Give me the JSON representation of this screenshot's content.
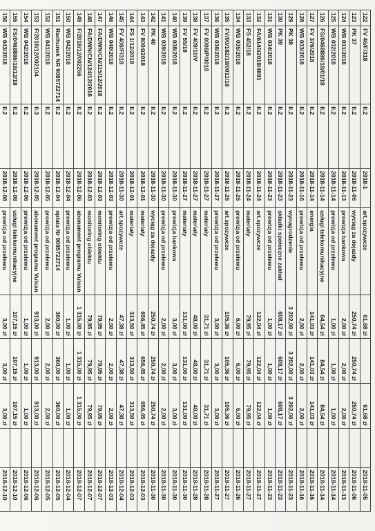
{
  "rows": [
    {
      "no": "122",
      "doc": "FV 46/F/318",
      "code": "II.2",
      "date": "2018-1",
      "desc": "art.spozywcze",
      "amount": "61,68 zł",
      "paid": "",
      "balance": "61,68 zł",
      "date2": "",
      "date3": "2018-11-05"
    },
    {
      "no": "123",
      "doc": "PK 37",
      "code": "II.2",
      "date": "2018-11-06",
      "desc": "wyciąg za dojazdy",
      "amount": "250,74 zł",
      "paid": "250,74 zł",
      "balance": "250,74 zł",
      "date2": "",
      "date3": "2018-11-06"
    },
    {
      "no": "124",
      "doc": "WB 031/2018",
      "code": "II.2",
      "date": "2018-11-13",
      "desc": "prowizja bankowa",
      "amount": "2,00 zł",
      "paid": "2,00 zł",
      "balance": "2,00 zł",
      "date2": "",
      "date3": "2018-11-13"
    },
    {
      "no": "125",
      "doc": "WB 032/2018",
      "code": "II.2",
      "date": "2018-11-14",
      "desc": "prowizja od przelewu",
      "amount": "1,00 zł",
      "paid": "1,00 zł",
      "balance": "1,00 zł",
      "date2": "",
      "date3": "2018-11-14"
    },
    {
      "no": "126",
      "doc": "FS/0468886/18/01/18",
      "code": "II.2",
      "date": "2018-11-14",
      "desc": "usługi telekomunikacyjne",
      "amount": "84,54 zł",
      "paid": "84,54 zł",
      "balance": "84,54 zł",
      "date2": "",
      "date3": "2018-11-14"
    },
    {
      "no": "127",
      "doc": "FV 376/2018",
      "code": "II.2",
      "date": "2018-11-14",
      "desc": "energia",
      "amount": "141,03 zł",
      "paid": "141,03 zł",
      "balance": "141,03 zł",
      "date2": "",
      "date3": "2018-11-16"
    },
    {
      "no": "128",
      "doc": "WB 033/2018",
      "code": "II.2",
      "date": "2018-11-16",
      "desc": "prowizja od przelewu",
      "amount": "2,00 zł",
      "paid": "2,00 zł",
      "balance": "2,00 zł",
      "date2": "",
      "date3": "2018-11-16"
    },
    {
      "no": "129",
      "doc": "PK 38",
      "code": "II.2",
      "date": "2018-11-23",
      "desc": "wynagrodzenie",
      "amount": "3 202,00 zł",
      "paid": "3 202,00 zł",
      "balance": "3 202,00 zł",
      "date2": "",
      "date3": "2018-11-23"
    },
    {
      "no": "130",
      "doc": "PK 39",
      "code": "II.2",
      "date": "2018-11-23",
      "desc": "składki społeczne zakład",
      "amount": "608,17 zł",
      "paid": "608,17 zł",
      "balance": "608,17 zł",
      "date2": "",
      "date3": "2018-11-23"
    },
    {
      "no": "131",
      "doc": "WB 034/2018",
      "code": "II.2",
      "date": "2018-11-23",
      "desc": "prowizja od przelewu",
      "amount": "1,00 zł",
      "paid": "1,00 zł",
      "balance": "1,00 zł",
      "date2": "",
      "date3": "2018-11-23"
    },
    {
      "no": "132",
      "doc": "FA/6140/2018/4891",
      "code": "II.2",
      "date": "2018-11-24",
      "desc": "art.spozywcze",
      "amount": "122,04 zł",
      "paid": "122,04 zł",
      "balance": "122,04 zł",
      "date2": "",
      "date3": "2018-11-27"
    },
    {
      "no": "133",
      "doc": "FS 452/18",
      "code": "II.2",
      "date": "2018-11-24",
      "desc": "materiały",
      "amount": "79,95 zł",
      "paid": "79,95 zł",
      "balance": "79,95 zł",
      "date2": "",
      "date3": "2018-11-27"
    },
    {
      "no": "134",
      "doc": "WB 035/2018",
      "code": "II.2",
      "date": "2018-11-26",
      "desc": "prowizja od przelewu",
      "amount": "6,00 zł",
      "paid": "6,00 zł",
      "balance": "6,00 zł",
      "date2": "",
      "date3": "2018-11-26"
    },
    {
      "no": "135",
      "doc": "FV/00/182/18/0011/18",
      "code": "II.2",
      "date": "2018-11-26",
      "desc": "art.spozywcze",
      "amount": "105,36 zł",
      "paid": "105,36 zł",
      "balance": "105,36 zł",
      "date2": "",
      "date3": "2018-11-27"
    },
    {
      "no": "136",
      "doc": "WB 036/2018",
      "code": "II.2",
      "date": "2018-11-27",
      "desc": "prowizja od przelewu",
      "amount": "3,00 zł",
      "paid": "3,00 zł",
      "balance": "3,00 zł",
      "date2": "",
      "date3": "2018-11-27"
    },
    {
      "no": "137",
      "doc": "FV 0008/P/0018",
      "code": "II.2",
      "date": "2018-11-27",
      "desc": "materiały",
      "amount": "31,71 zł",
      "paid": "31,71 zł",
      "balance": "31,71 zł",
      "date2": "",
      "date3": "2018-11-28"
    },
    {
      "no": "138",
      "doc": "FV 409/10/V",
      "code": "II.2",
      "date": "2018-11-27",
      "desc": "materiały",
      "amount": "48,00 zł",
      "paid": "48,00 zł",
      "balance": "48,00 zł",
      "date2": "",
      "date3": "2018-11-28"
    },
    {
      "no": "139",
      "doc": "FV 55/18",
      "code": "II.2",
      "date": "2018-11-27",
      "desc": "materiały",
      "amount": "131,00 zł",
      "paid": "131,00 zł",
      "balance": "131,00 zł",
      "date2": "",
      "date3": "2018-11-30"
    },
    {
      "no": "140",
      "doc": "WB 038/2018",
      "code": "II.2",
      "date": "2018-11-30",
      "desc": "prowizja bankowa",
      "amount": "3,00 zł",
      "paid": "3,00 zł",
      "balance": "3,00 zł",
      "date2": "",
      "date3": "2018-11-30"
    },
    {
      "no": "141",
      "doc": "WB 039/2018",
      "code": "II.2",
      "date": "2018-11-30",
      "desc": "prowizja od przelewu",
      "amount": "2,00 zł",
      "paid": "2,00 zł",
      "balance": "2,00 zł",
      "date2": "",
      "date3": "2018-11-30"
    },
    {
      "no": "142",
      "doc": "PK 40",
      "code": "II.2",
      "date": "2018-11-30",
      "desc": "wyciąg za dojazdy",
      "amount": "250,74 zł",
      "paid": "250,74 zł",
      "balance": "250,74 zł",
      "date2": "",
      "date3": "2018-11-30"
    },
    {
      "no": "143",
      "doc": "FV 8004/2018",
      "code": "II.2",
      "date": "2018-12-01",
      "desc": "materiały",
      "amount": "656,45 zł",
      "paid": "656,45 zł",
      "balance": "656,45 zł",
      "date2": "",
      "date3": "2018-12-03"
    },
    {
      "no": "144",
      "doc": "FS 1/12/2018",
      "code": "II.2",
      "date": "2018-12-01",
      "desc": "materiały",
      "amount": "313,50 zł",
      "paid": "313,50 zł",
      "balance": "313,50 zł",
      "date2": "",
      "date3": "2018-12-03"
    },
    {
      "no": "145",
      "doc": "FV 406/F/318",
      "code": "II.2",
      "date": "2018-11-30",
      "desc": "art.spozywcze",
      "amount": "47,38 zł",
      "paid": "47,38 zł",
      "balance": "47,38 zł",
      "date2": "",
      "date3": "2018-12-04"
    },
    {
      "no": "146",
      "doc": "WB 040/2018",
      "code": "II.2",
      "date": "2018-12-03",
      "desc": "prowizja od przelewu",
      "amount": "2,00 zł",
      "paid": "2,00 zł",
      "balance": "2,00 zł",
      "date2": "",
      "date3": "2018-12-03"
    },
    {
      "no": "147",
      "doc": "FA/DWN/CN/115/12/2018",
      "code": "II.2",
      "date": "2018-12-03",
      "desc": "monitoring obiektu",
      "amount": "79,95 zł",
      "paid": "79,95 zł",
      "balance": "79,95 zł",
      "date2": "",
      "date3": "2018-12-07"
    },
    {
      "no": "148",
      "doc": "FA/DWN/CN/124/12/2018",
      "code": "II.2",
      "date": "2018-12-03",
      "desc": "monitoring obiektu",
      "amount": "79,95 zł",
      "paid": "79,95 zł",
      "balance": "79,95 zł",
      "date2": "",
      "date3": "2018-12-07"
    },
    {
      "no": "149",
      "doc": "F/2018/12/002266",
      "code": "II.2",
      "date": "2018-12-06",
      "desc": "abonament programu Vulcan",
      "amount": "1 315,00 zł",
      "paid": "1 315,00 zł",
      "balance": "1 315,00 zł",
      "date2": "",
      "date3": "2018-12-07"
    },
    {
      "no": "150",
      "doc": "WB 042/2018",
      "code": "II.2",
      "date": "2018-12-04",
      "desc": "prowizja od przelewu",
      "amount": "1,00 zł",
      "paid": "1,00 zł",
      "balance": "1,00 zł",
      "date2": "",
      "date3": "2018-12-04"
    },
    {
      "no": "151",
      "doc": "Rachunek NR 9085722714",
      "code": "II.2",
      "date": "2018-12-04",
      "desc": "opłata Nr 9085722714",
      "amount": "360,00 zł",
      "paid": "360,00 zł",
      "balance": "360,00 zł",
      "date2": "",
      "date3": "2018-12-05"
    },
    {
      "no": "152",
      "doc": "WB 041/2018",
      "code": "II.2",
      "date": "2018-12-05",
      "desc": "prowizja od przelewu",
      "amount": "2,00 zł",
      "paid": "2,00 zł",
      "balance": "2,00 zł",
      "date2": "",
      "date3": "2018-12-05"
    },
    {
      "no": "153",
      "doc": "F/2018/12/002104",
      "code": "II.3",
      "date": "2018-12-05",
      "desc": "abonament programu Vulcan",
      "amount": "913,00 zł",
      "paid": "913,00 zł",
      "balance": "913,00 zł",
      "date2": "",
      "date3": "2018-12-06"
    },
    {
      "no": "154",
      "doc": "WB 042/2018",
      "code": "II.2",
      "date": "2018-12-06",
      "desc": "prowizja od przelewu",
      "amount": "1,00 zł",
      "paid": "1,00 zł",
      "balance": "1,00 zł",
      "date2": "",
      "date3": "2018-12-06"
    },
    {
      "no": "155",
      "doc": "FS/0468886/18/12/18",
      "code": "II.2",
      "date": "2018-12-08",
      "desc": "usługi telekomunikacyjne",
      "amount": "107,15 zł",
      "paid": "107,15 zł",
      "balance": "107,15 zł",
      "date2": "",
      "date3": "2018-12-10"
    },
    {
      "no": "156",
      "doc": "WB 043/2018",
      "code": "II.2",
      "date": "2018-12-08",
      "desc": "prowizja od przelewu",
      "amount": "3,00 zł",
      "paid": "3,00 zł",
      "balance": "3,00 zł",
      "date2": "",
      "date3": "2018-12-10"
    },
    {
      "no": "157",
      "doc": "FV 3058/F/318/4/12/18",
      "code": "II.2",
      "date": "2018-12-08",
      "desc": "materiały",
      "amount": "323,66 zł",
      "paid": "323,66 zł",
      "balance": "323,66 zł",
      "date2": "",
      "date3": "2018-12-10"
    },
    {
      "no": "158",
      "doc": "WB 044/2018",
      "code": "II.2",
      "date": "2018-12-10",
      "desc": "prowizja od przelewu",
      "amount": "1,00 zł",
      "paid": "1,00 zł",
      "balance": "1,00 zł",
      "date2": "",
      "date3": "2018-12-10"
    },
    {
      "no": "159",
      "doc": "FV 414/2018",
      "code": "II.2",
      "date": "2018-12-10",
      "desc": "energia",
      "amount": "91,76 zł",
      "paid": "91,76 zł",
      "balance": "91,76 zł",
      "date2": "",
      "date3": "2018-12-11"
    },
    {
      "no": "160",
      "doc": "WB 045/2018",
      "code": "II.2",
      "date": "2018-12-11",
      "desc": "prowizja od przelewu",
      "amount": "1,00 zł",
      "paid": "1,00 zł",
      "balance": "1,00 zł",
      "date2": "",
      "date3": "2018-12-11"
    },
    {
      "no": "161",
      "doc": "PK 41",
      "code": "II.2",
      "date": "2018-12-11",
      "desc": "wyciąg za dojazdy",
      "amount": "90,00 zł",
      "paid": "90,00 zł",
      "balance": "90,00 zł",
      "date2": "",
      "date3": "2018-12-17"
    },
    {
      "no": "162",
      "doc": "WB 046/2018",
      "code": "II.2",
      "date": "2018-12-17",
      "desc": "prowizja od przelewu",
      "amount": "1,00 zł",
      "paid": "1,00 zł",
      "balance": "1,00 zł",
      "date2": "",
      "date3": "2018-12-17"
    },
    {
      "no": "163",
      "doc": "FS 504/18",
      "code": "II.2",
      "date": "2018-12-20",
      "desc": "materiały",
      "amount": "79,95 zł",
      "paid": "79,95 zł",
      "balance": "79,95 zł",
      "date2": "",
      "date3": "2018-12-20"
    },
    {
      "no": "164",
      "doc": "WB 047/2018",
      "code": "II.2",
      "date": "2018-12-20",
      "desc": "prowizja od przelewu",
      "amount": "2,00 zł",
      "paid": "2,00 zł",
      "balance": "2,00 zł",
      "date2": "",
      "date3": "2018-12-20"
    },
    {
      "no": "165",
      "doc": "FA/617/12/2018/4891",
      "code": "II.2",
      "date": "2018-12-20",
      "desc": "art.spozywcze",
      "amount": "87,12 zł",
      "paid": "87,12 zł",
      "balance": "87,12 zł",
      "date2": "",
      "date3": "2018-12-21"
    },
    {
      "no": "166",
      "doc": "FV 57/F/318",
      "code": "II.2",
      "date": "2018-12-20",
      "desc": "art.spozywcze",
      "amount": "64,39 zł",
      "paid": "64,39 zł",
      "balance": "64,39 zł",
      "date2": "",
      "date3": "2018-12-21"
    }
  ]
}
